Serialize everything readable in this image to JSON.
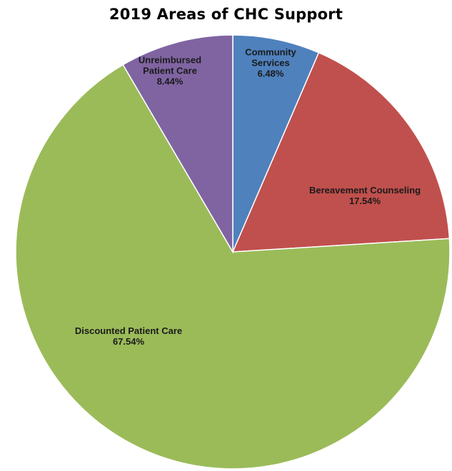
{
  "chart_data": {
    "type": "pie",
    "title": "2019 Areas of CHC Support",
    "start_angle_deg": 0,
    "direction": "clockwise",
    "legend": "none",
    "slices": [
      {
        "name": "Community Services",
        "label_lines": [
          "Community",
          "Services"
        ],
        "pct_label": "6.48%",
        "value": 6.48,
        "color": "#4f81bd"
      },
      {
        "name": "Bereavement Counseling",
        "label_lines": [
          "Bereavement Counseling"
        ],
        "pct_label": "17.54%",
        "value": 17.54,
        "color": "#c0504d"
      },
      {
        "name": "Discounted Patient Care",
        "label_lines": [
          "Discounted Patient Care"
        ],
        "pct_label": "67.54%",
        "value": 67.54,
        "color": "#9bbb59"
      },
      {
        "name": "Unreimbursed Patient Care",
        "label_lines": [
          "Unreimbursed",
          "Patient Care"
        ],
        "pct_label": "8.44%",
        "value": 8.44,
        "color": "#8064a2"
      }
    ]
  }
}
